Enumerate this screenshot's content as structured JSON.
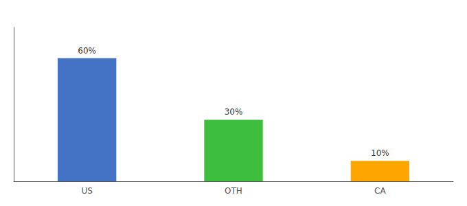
{
  "chart_data": {
    "type": "bar",
    "categories": [
      "US",
      "OTH",
      "CA"
    ],
    "values": [
      60,
      30,
      10
    ],
    "value_labels": [
      "60%",
      "30%",
      "10%"
    ],
    "data_labels": true,
    "colors": [
      "#4472C4",
      "#3DBF3D",
      "#FFA500"
    ],
    "ylim": [
      0,
      75
    ],
    "grid": false,
    "tick_labels": "x"
  }
}
